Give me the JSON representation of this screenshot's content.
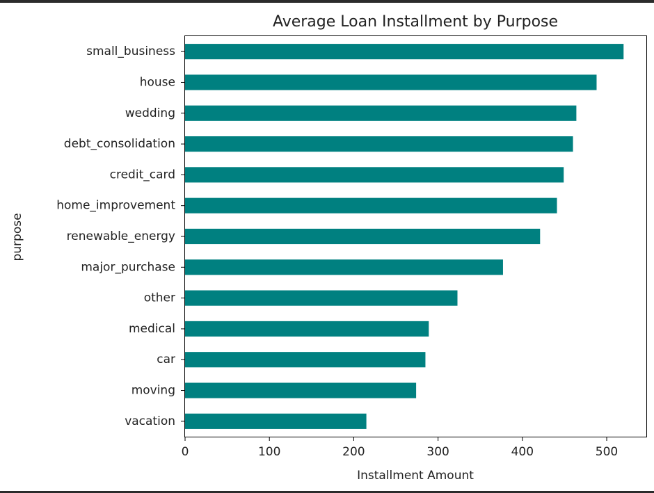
{
  "chart_data": {
    "type": "bar",
    "orientation": "horizontal",
    "title": "Average Loan Installment by Purpose",
    "xlabel": "Installment Amount",
    "ylabel": "purpose",
    "categories": [
      "small_business",
      "house",
      "wedding",
      "debt_consolidation",
      "credit_card",
      "home_improvement",
      "renewable_energy",
      "major_purchase",
      "other",
      "medical",
      "car",
      "moving",
      "vacation"
    ],
    "values": [
      520,
      488,
      464,
      460,
      449,
      441,
      421,
      377,
      323,
      289,
      285,
      274,
      215
    ],
    "xlim": [
      0,
      547
    ],
    "xticks": [
      0,
      100,
      200,
      300,
      400,
      500
    ],
    "bar_color": "#008080",
    "grid": false,
    "legend": "none"
  }
}
